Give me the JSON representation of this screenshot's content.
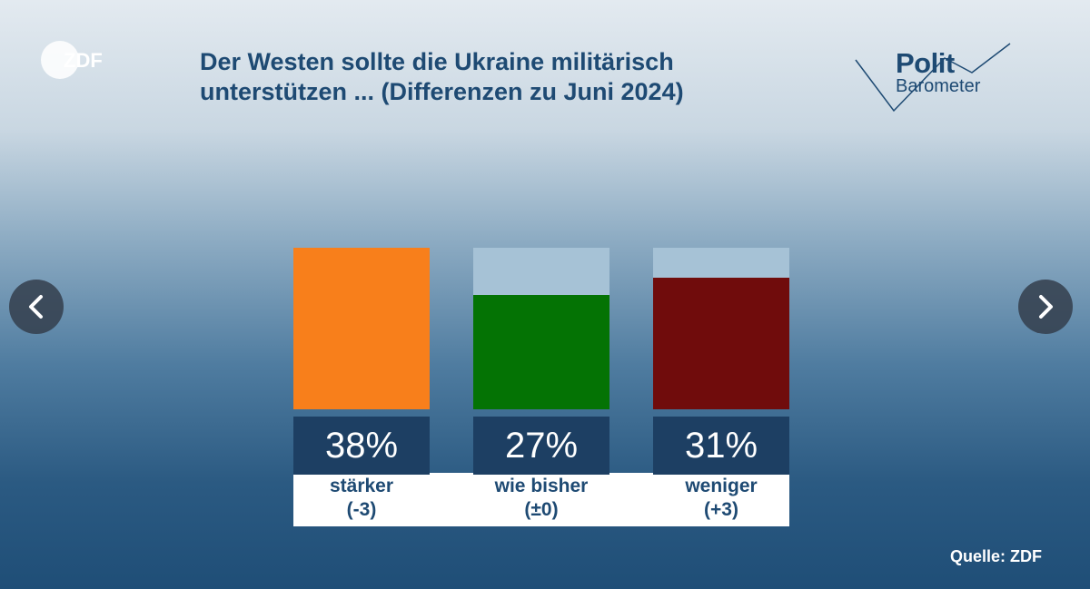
{
  "brand": {
    "logo_text": "ZDF"
  },
  "politbarometer": {
    "line1": "Polit",
    "line2": "Barometer"
  },
  "navigation": {
    "prev_icon": "chevron-left-icon",
    "next_icon": "chevron-right-icon"
  },
  "source": "Quelle: ZDF",
  "chart_data": {
    "type": "bar",
    "title": "Der Westen sollte die Ukraine militärisch\nunterstützen ... (Differenzen zu Juni 2024)",
    "categories": [
      "stärker",
      "wie bisher",
      "weniger"
    ],
    "changes": [
      "(-3)",
      "(±0)",
      "(+3)"
    ],
    "values": [
      38,
      27,
      31
    ],
    "value_labels": [
      "38%",
      "27%",
      "31%"
    ],
    "unit": "%",
    "ylim": [
      0,
      38
    ],
    "colors": [
      "#f87f1b",
      "#047304",
      "#700c0c"
    ],
    "track_color": "#a6c2d6",
    "grid": false
  }
}
